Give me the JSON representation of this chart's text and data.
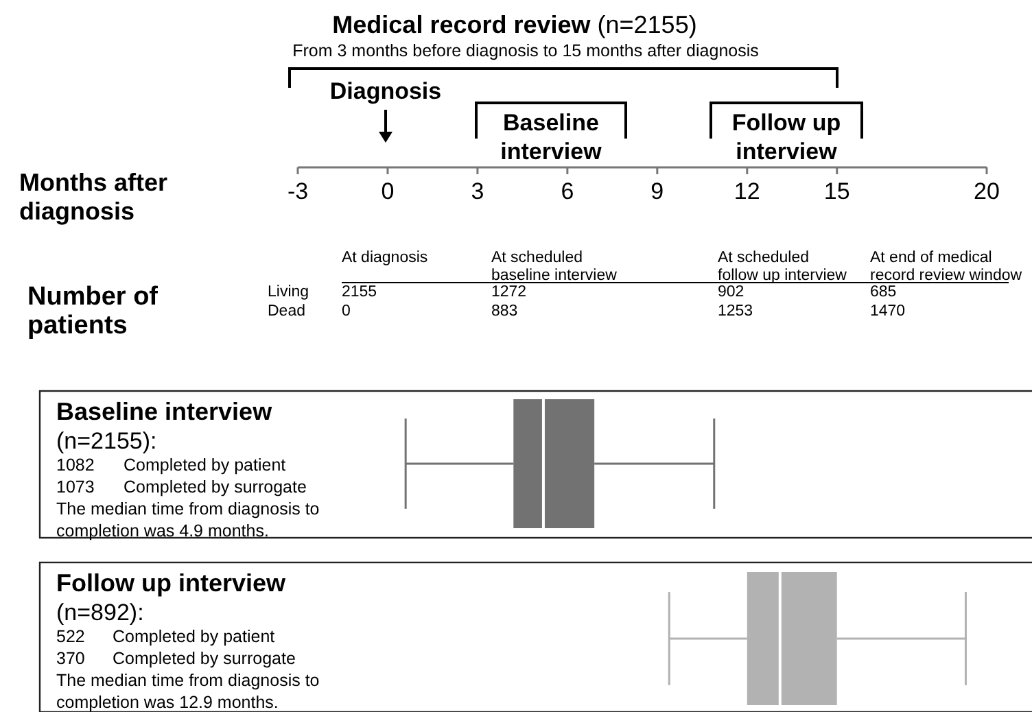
{
  "chart_data": {
    "type": "box",
    "orientation": "horizontal",
    "title": "Medical record review (n=2155)",
    "subtitle": "From 3 months before diagnosis to 15 months after diagnosis",
    "xlabel": "Months after diagnosis",
    "categories": [
      "Baseline interview",
      "Follow up interview"
    ],
    "boxes": [
      {
        "low": 0.6,
        "q1": 4.2,
        "median": 5.2,
        "q3": 6.9,
        "high": 10.9
      },
      {
        "low": 9.4,
        "q1": 12.0,
        "median": 13.1,
        "q3": 15.0,
        "high": 19.3
      }
    ],
    "colors": [
      "#727272",
      "#b2b2b2"
    ],
    "xlim": [
      -3,
      20
    ],
    "xticks": [
      -3,
      0,
      3,
      6,
      9,
      12,
      15,
      20
    ],
    "annotations": [
      "Number of\npatients",
      "At diagnosis",
      "At scheduled\nbaseline interview",
      "At scheduled\nfollow up interview",
      "At end of medical\nrecord review window",
      "Living",
      "2155",
      "1272",
      "902",
      "685",
      "Dead",
      "0",
      "883",
      "1253",
      "1470",
      "(n=2155):\n1082\tCompleted by patient\n1073\tCompleted by surrogate\nThe median time from diagnosis to\ncompletion was 4.9 months.",
      "(n=892):\n522\tCompleted by patient\n370\tCompleted by surrogate\nThe median time from diagnosis to\ncompletion was 12.9 months.",
      "Diagnosis",
      "Baseline\ninterview",
      "Follow up\ninterview"
    ]
  }
}
